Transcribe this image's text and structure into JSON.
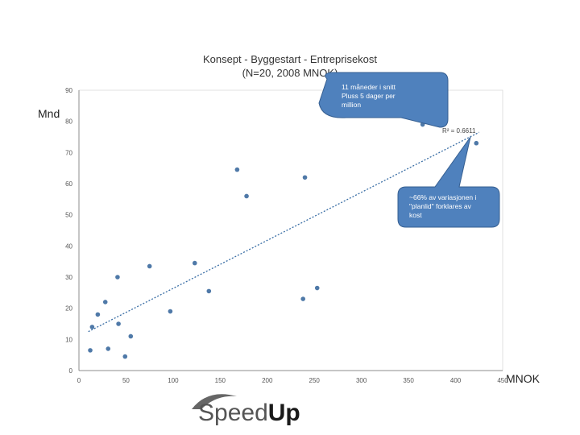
{
  "chart_data": {
    "type": "scatter",
    "title_lines": [
      "Konsept - Byggestart - Entreprisekost",
      "(N=20, 2008 MNOK)"
    ],
    "xlabel": "MNOK",
    "ylabel": "Mnd",
    "xlim": [
      0,
      450
    ],
    "ylim": [
      0,
      90
    ],
    "x_ticks": [
      "0",
      "50",
      "100",
      "150",
      "200",
      "250",
      "300",
      "350",
      "400",
      "450"
    ],
    "y_ticks": [
      "0",
      "10",
      "20",
      "30",
      "40",
      "50",
      "60",
      "70",
      "80",
      "90"
    ],
    "grid": false,
    "points": [
      {
        "x": 12,
        "y": 6.5
      },
      {
        "x": 14,
        "y": 14
      },
      {
        "x": 20,
        "y": 18
      },
      {
        "x": 28,
        "y": 22
      },
      {
        "x": 31,
        "y": 7
      },
      {
        "x": 41,
        "y": 30
      },
      {
        "x": 42,
        "y": 15
      },
      {
        "x": 49,
        "y": 4.5
      },
      {
        "x": 55,
        "y": 11
      },
      {
        "x": 75,
        "y": 33.5
      },
      {
        "x": 97,
        "y": 19
      },
      {
        "x": 123,
        "y": 34.5
      },
      {
        "x": 138,
        "y": 25.5
      },
      {
        "x": 168,
        "y": 64.5
      },
      {
        "x": 178,
        "y": 56
      },
      {
        "x": 238,
        "y": 23
      },
      {
        "x": 240,
        "y": 62
      },
      {
        "x": 253,
        "y": 26.5
      },
      {
        "x": 365,
        "y": 79
      },
      {
        "x": 422,
        "y": 73
      }
    ],
    "trendline": {
      "type": "linear",
      "x_start": 10,
      "y_start": 12.5,
      "x_end": 425,
      "y_end": 76.5,
      "r2_label": "R² = 0.6611"
    },
    "point_color": "#4f79a8",
    "trend_color": "#3a6ea5",
    "annotations": [
      {
        "id": "months",
        "lines": [
          "11 måneder i snitt",
          "Pluss 5 dager per",
          "million"
        ]
      },
      {
        "id": "variance",
        "lines": [
          "~66% av variasjonen i",
          "\"planlid\" forklares av",
          "kost"
        ]
      }
    ]
  },
  "logo": {
    "part1": "Speed",
    "part2": "Up"
  },
  "colors": {
    "bubble_fill": "#4f81bd",
    "bubble_stroke": "#365f91"
  }
}
